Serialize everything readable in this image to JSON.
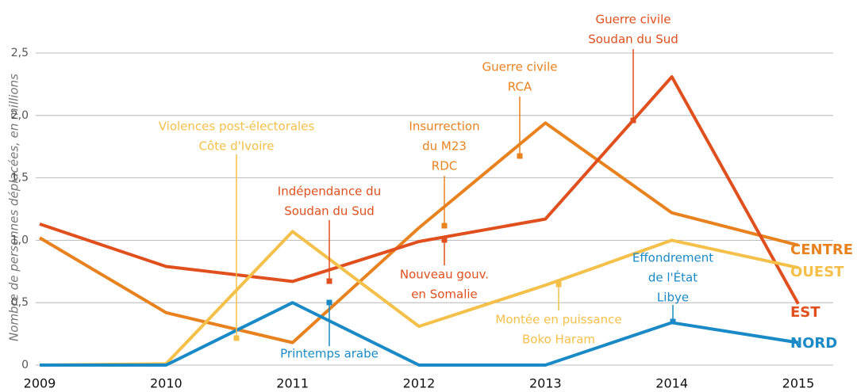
{
  "chart_data": {
    "type": "line",
    "y_label": "Nombre de personnes déplacées, en millions",
    "x": [
      "2009",
      "2010",
      "2011",
      "2012",
      "2013",
      "2014",
      "2015"
    ],
    "ylim": [
      0,
      2.5
    ],
    "yticks": [
      0,
      {
        "value": 0.5,
        "label": "0,5"
      },
      {
        "value": 1,
        "label": "1,0"
      },
      {
        "value": 1.5,
        "label": "1,5"
      },
      {
        "value": 2,
        "label": "2,0"
      },
      {
        "value": 2.5,
        "label": "2,5"
      }
    ],
    "grid": true,
    "series": [
      {
        "name": "CENTRE",
        "color": "#e8821e",
        "values": [
          1.02,
          0.42,
          0.18,
          1.1,
          1.94,
          1.22,
          0.96
        ]
      },
      {
        "name": "EST",
        "color": "#e0501e",
        "values": [
          1.13,
          0.79,
          0.67,
          0.99,
          1.17,
          2.31,
          0.49
        ]
      },
      {
        "name": "OUEST",
        "color": "#f5c04a",
        "values": [
          0,
          0.01,
          1.07,
          0.31,
          0.64,
          1.0,
          0.78
        ]
      },
      {
        "name": "NORD",
        "color": "#1a8ac6",
        "values": [
          0,
          0,
          0.5,
          0,
          0,
          0.34,
          0.18
        ]
      }
    ],
    "annotations": [
      {
        "lines": [
          "Violences post-électorales",
          "Côte d'Ivoire"
        ],
        "color": "#f5c04a"
      },
      {
        "lines": [
          "Indépendance du",
          "Soudan du Sud"
        ],
        "color": "#e0501e"
      },
      {
        "lines": [
          "Insurrection",
          "du M23",
          "RDC"
        ],
        "color": "#e8821e"
      },
      {
        "lines": [
          "Guerre civile",
          "RCA"
        ],
        "color": "#e8821e"
      },
      {
        "lines": [
          "Guerre civile",
          "Soudan du Sud"
        ],
        "color": "#e0501e"
      },
      {
        "lines": [
          "Nouveau gouv.",
          "en Somalie"
        ],
        "color": "#e0501e"
      },
      {
        "lines": [
          "Montée en puissance",
          "Boko Haram"
        ],
        "color": "#f5c04a"
      },
      {
        "lines": [
          "Effondrement",
          "de l'État",
          "Libye"
        ],
        "color": "#1a8ac6"
      },
      {
        "lines": [
          "Printemps arabe"
        ],
        "color": "#1a8ac6"
      }
    ]
  }
}
